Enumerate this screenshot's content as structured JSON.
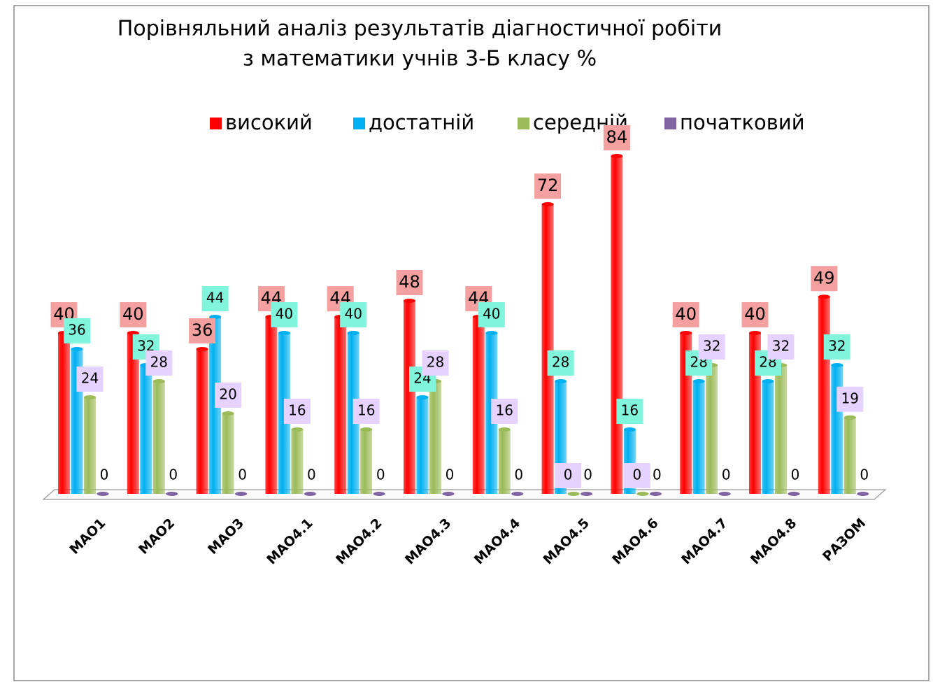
{
  "chart_data": {
    "type": "bar3d",
    "title": "Порівняльний аналіз результатів діагностичної робіти",
    "subtitle": "з математики  учнів 3-Б класу %",
    "categories": [
      "МАО1",
      "МАО2",
      "МАО3",
      "МАО4.1",
      "МАО4.2",
      "МАО4.3",
      "МАО4.4",
      "МАО4.5",
      "МАО4.6",
      "МАО4.7",
      "МАО4.8",
      "РАЗОМ"
    ],
    "series": [
      {
        "name": "високий",
        "color": "#ff0000",
        "values": [
          40,
          40,
          36,
          44,
          44,
          48,
          44,
          72,
          84,
          40,
          40,
          49
        ]
      },
      {
        "name": "достатній",
        "color": "#00b0f0",
        "values": [
          36,
          32,
          44,
          40,
          40,
          24,
          40,
          28,
          16,
          28,
          28,
          32
        ]
      },
      {
        "name": "середній",
        "color": "#9bbb59",
        "values": [
          24,
          28,
          20,
          16,
          16,
          28,
          16,
          0,
          0,
          32,
          32,
          19
        ]
      },
      {
        "name": "початковий",
        "color": "#8064a2",
        "values": [
          0,
          0,
          0,
          0,
          0,
          0,
          0,
          0,
          0,
          0,
          0,
          0
        ]
      }
    ],
    "legend": "top"
  }
}
